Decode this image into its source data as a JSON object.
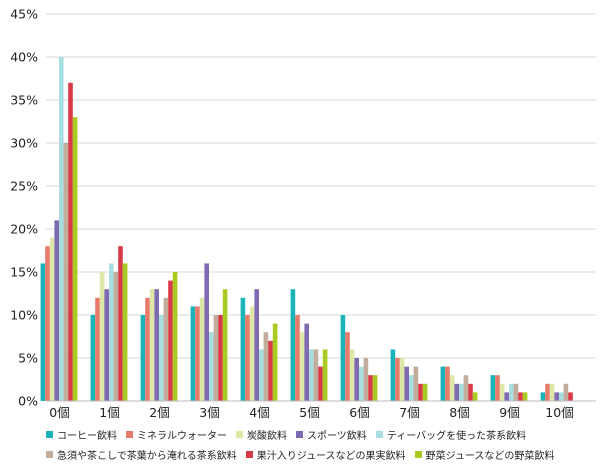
{
  "chart_data": {
    "type": "bar",
    "categories": [
      "0個",
      "1個",
      "2個",
      "3個",
      "4個",
      "5個",
      "6個",
      "7個",
      "8個",
      "9個",
      "10個"
    ],
    "ylim": [
      0,
      45
    ],
    "y_ticks": [
      "0%",
      "5%",
      "10%",
      "15%",
      "20%",
      "25%",
      "30%",
      "35%",
      "40%",
      "45%"
    ],
    "grid": true,
    "legend_position": "bottom",
    "series": [
      {
        "name": "コーヒー飲料",
        "color": "#1ab3b8",
        "values": [
          16,
          10,
          10,
          11,
          12,
          13,
          10,
          6,
          4,
          3,
          1
        ]
      },
      {
        "name": "ミネラルウォーター",
        "color": "#e87a6b",
        "values": [
          18,
          12,
          12,
          11,
          10,
          10,
          8,
          5,
          4,
          3,
          2
        ]
      },
      {
        "name": "炭酸飲料",
        "color": "#dfe7a8",
        "values": [
          19,
          15,
          13,
          12,
          11,
          8,
          6,
          5,
          3,
          2,
          2
        ]
      },
      {
        "name": "スポーツ飲料",
        "color": "#7f6bb1",
        "values": [
          21,
          13,
          13,
          16,
          13,
          9,
          5,
          4,
          2,
          1,
          1
        ]
      },
      {
        "name": "ティーバッグを使った茶系飲料",
        "color": "#a8dde1",
        "values": [
          40,
          16,
          10,
          8,
          6,
          6,
          4,
          3,
          2,
          2,
          1
        ]
      },
      {
        "name": "急須や茶こしで茶葉から淹れる茶系飲料",
        "color": "#c2ad9c",
        "values": [
          30,
          15,
          12,
          10,
          8,
          6,
          5,
          4,
          3,
          2,
          2
        ]
      },
      {
        "name": "果汁入りジュースなどの果実飲料",
        "color": "#d83a47",
        "values": [
          37,
          18,
          14,
          10,
          7,
          4,
          3,
          2,
          2,
          1,
          1
        ]
      },
      {
        "name": "野菜ジュースなどの野菜飲料",
        "color": "#a9cb1f",
        "values": [
          33,
          16,
          15,
          13,
          9,
          6,
          3,
          2,
          1,
          1,
          0
        ]
      }
    ]
  },
  "legend": {
    "row1": [
      0,
      1,
      2,
      3,
      4
    ],
    "row2": [
      5,
      6,
      7
    ]
  }
}
